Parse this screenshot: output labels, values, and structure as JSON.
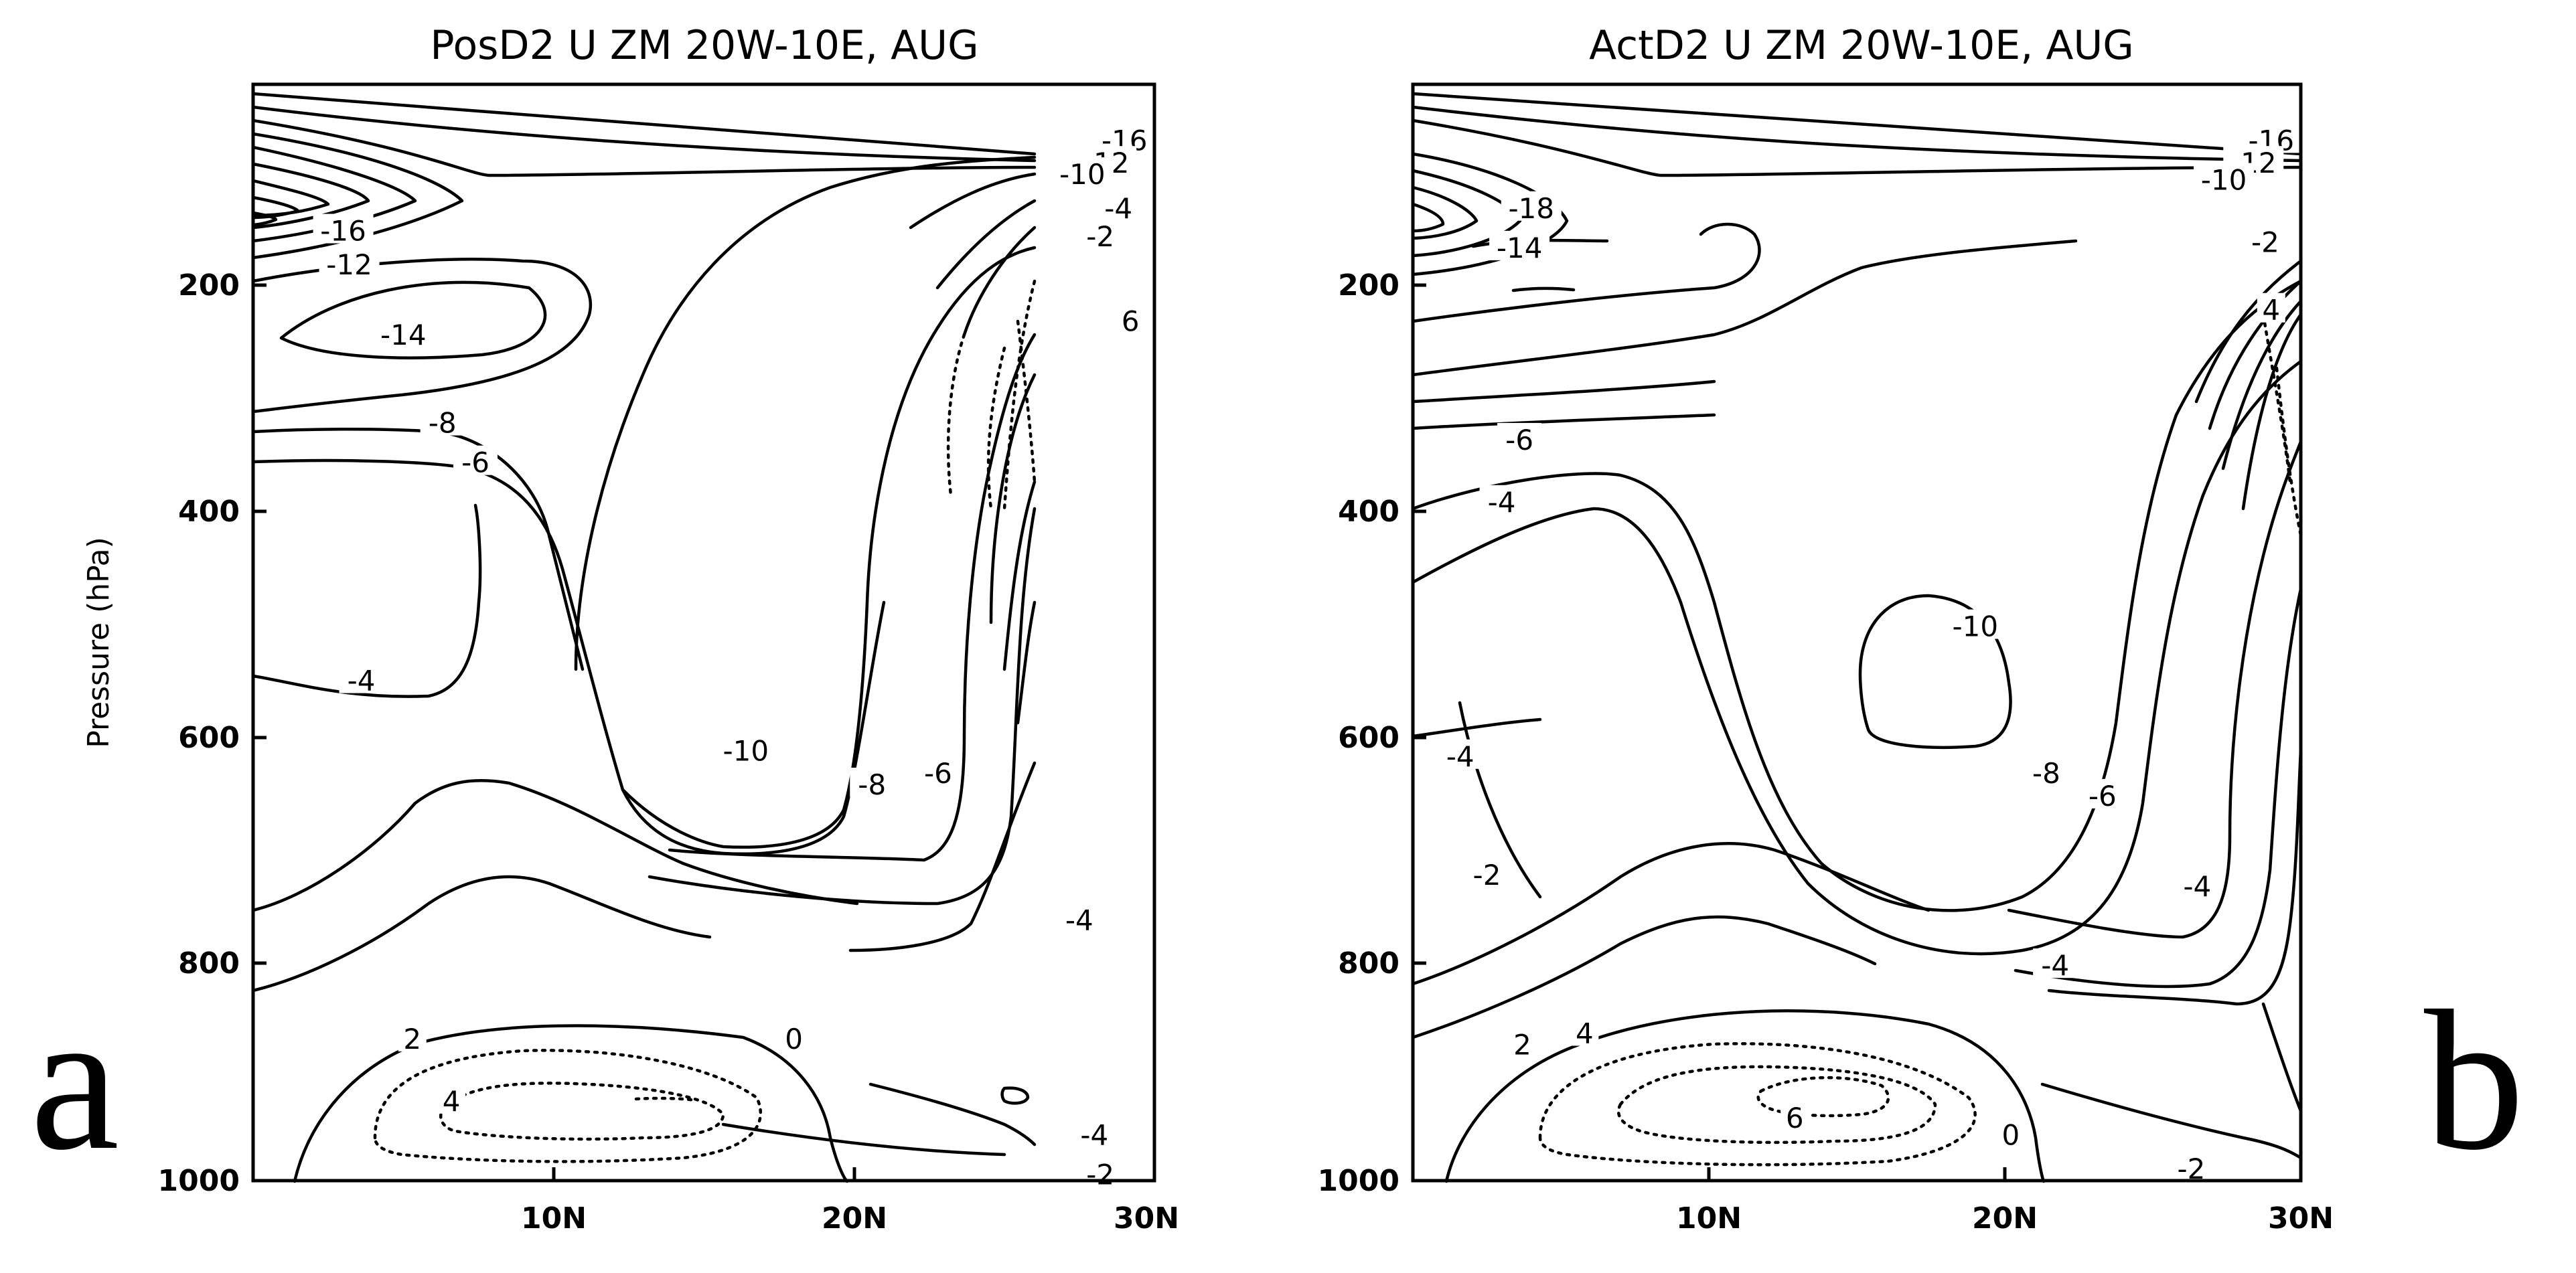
{
  "chart_data": [
    {
      "type": "contour",
      "panel_label": "a",
      "title": "PosD2 U ZM 20W-10E, AUG",
      "ylabel": "Pressure (hPa)",
      "xlabel": "",
      "x_ticks": [
        "10N",
        "20N",
        "30N"
      ],
      "y_ticks": [
        "200",
        "400",
        "600",
        "800",
        "1000"
      ],
      "xlim": [
        0,
        30
      ],
      "ylim": [
        1000,
        30
      ],
      "contour_labels": [
        {
          "text": "-16",
          "x": 3.0,
          "y": 160
        },
        {
          "text": "-12",
          "x": 3.2,
          "y": 190
        },
        {
          "text": "-14",
          "x": 5.0,
          "y": 252
        },
        {
          "text": "-8",
          "x": 6.3,
          "y": 330
        },
        {
          "text": "-6",
          "x": 7.4,
          "y": 365
        },
        {
          "text": "-4",
          "x": 3.6,
          "y": 558
        },
        {
          "text": "-10",
          "x": 16.4,
          "y": 620
        },
        {
          "text": "-8",
          "x": 20.6,
          "y": 650
        },
        {
          "text": "-6",
          "x": 22.8,
          "y": 640
        },
        {
          "text": "-16",
          "x": 29.0,
          "y": 80
        },
        {
          "text": "-12",
          "x": 28.4,
          "y": 100
        },
        {
          "text": "-10",
          "x": 27.6,
          "y": 110
        },
        {
          "text": "-4",
          "x": 28.8,
          "y": 140
        },
        {
          "text": "-2",
          "x": 28.2,
          "y": 165
        },
        {
          "text": "6",
          "x": 29.2,
          "y": 240
        },
        {
          "text": "-4",
          "x": 27.5,
          "y": 770
        },
        {
          "text": "0",
          "x": 18.0,
          "y": 875
        },
        {
          "text": "2",
          "x": 5.3,
          "y": 875
        },
        {
          "text": "4",
          "x": 6.6,
          "y": 930
        },
        {
          "text": "-4",
          "x": 28.0,
          "y": 960
        },
        {
          "text": "-2",
          "x": 28.2,
          "y": 995
        }
      ]
    },
    {
      "type": "contour",
      "panel_label": "b",
      "title": "ActD2 U ZM 20W-10E, AUG",
      "ylabel": "",
      "xlabel": "",
      "x_ticks": [
        "10N",
        "20N",
        "30N"
      ],
      "y_ticks": [
        "200",
        "400",
        "600",
        "800",
        "1000"
      ],
      "xlim": [
        0,
        30
      ],
      "ylim": [
        1000,
        30
      ],
      "contour_labels": [
        {
          "text": "-18",
          "x": 4.0,
          "y": 140
        },
        {
          "text": "-14",
          "x": 3.6,
          "y": 175
        },
        {
          "text": "-6",
          "x": 3.6,
          "y": 345
        },
        {
          "text": "-4",
          "x": 3.0,
          "y": 400
        },
        {
          "text": "-4",
          "x": 1.6,
          "y": 625
        },
        {
          "text": "-10",
          "x": 19.0,
          "y": 510
        },
        {
          "text": "-8",
          "x": 21.4,
          "y": 640
        },
        {
          "text": "-6",
          "x": 23.3,
          "y": 660
        },
        {
          "text": "-4",
          "x": 26.5,
          "y": 740
        },
        {
          "text": "-2",
          "x": 2.5,
          "y": 730
        },
        {
          "text": "-4",
          "x": 21.7,
          "y": 810
        },
        {
          "text": "2",
          "x": 3.7,
          "y": 880
        },
        {
          "text": "4",
          "x": 5.8,
          "y": 870
        },
        {
          "text": "6",
          "x": 12.9,
          "y": 945
        },
        {
          "text": "0",
          "x": 20.2,
          "y": 960
        },
        {
          "text": "-2",
          "x": 26.3,
          "y": 990
        },
        {
          "text": "-16",
          "x": 29.0,
          "y": 80
        },
        {
          "text": "-12",
          "x": 28.4,
          "y": 100
        },
        {
          "text": "-10",
          "x": 27.4,
          "y": 115
        },
        {
          "text": "-2",
          "x": 28.8,
          "y": 170
        },
        {
          "text": "4",
          "x": 29.0,
          "y": 230
        }
      ]
    }
  ]
}
